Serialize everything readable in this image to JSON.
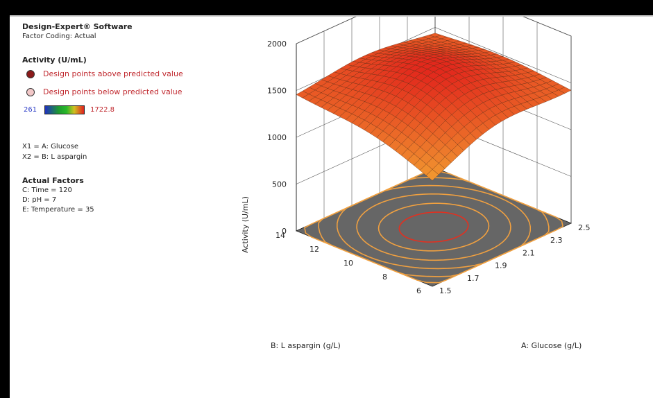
{
  "header": {
    "software": "Design-Expert® Software",
    "coding": "Factor Coding: Actual"
  },
  "response": {
    "name": "Activity (U/mL)",
    "above_label": "Design points above predicted value",
    "below_label": "Design points below predicted value",
    "range_min": "261",
    "range_max": "1722.8",
    "above_color": "#8b1a1a",
    "below_color": "#f2c8c8"
  },
  "factors": {
    "x1": "X1 = A: Glucose",
    "x2": "X2 = B: L aspargin"
  },
  "actual_factors": {
    "title": "Actual Factors",
    "items": [
      "C: Time = 120",
      "D: pH = 7",
      "E: Temperature = 35"
    ]
  },
  "chart_data": {
    "type": "surface",
    "zlabel": "Activity (U/mL)",
    "xlabel": "A: Glucose (g/L)",
    "ylabel": "B: L aspargin (g/L)",
    "x_ticks": [
      "1.5",
      "1.7",
      "1.9",
      "2.1",
      "2.3",
      "2.5"
    ],
    "y_ticks": [
      "6",
      "8",
      "10",
      "12",
      "14"
    ],
    "z_ticks": [
      "0",
      "500",
      "1000",
      "1500",
      "2000"
    ],
    "xlim": [
      1.5,
      2.5
    ],
    "ylim": [
      6,
      14
    ],
    "zlim": [
      0,
      2000
    ],
    "z_corners": {
      "x_low_y_low": 1050,
      "x_high_y_low": 1380,
      "x_low_y_high": 1420,
      "x_high_y_high": 1400
    },
    "z_peak": 1722.8,
    "peak_at": {
      "x": 2.0,
      "y": 10.0
    },
    "surface_colors": [
      "#f5b335",
      "#e2271c"
    ],
    "contour_color": "#f0a040",
    "contour_center_color": "#e23020",
    "floor_color": "#666666"
  }
}
